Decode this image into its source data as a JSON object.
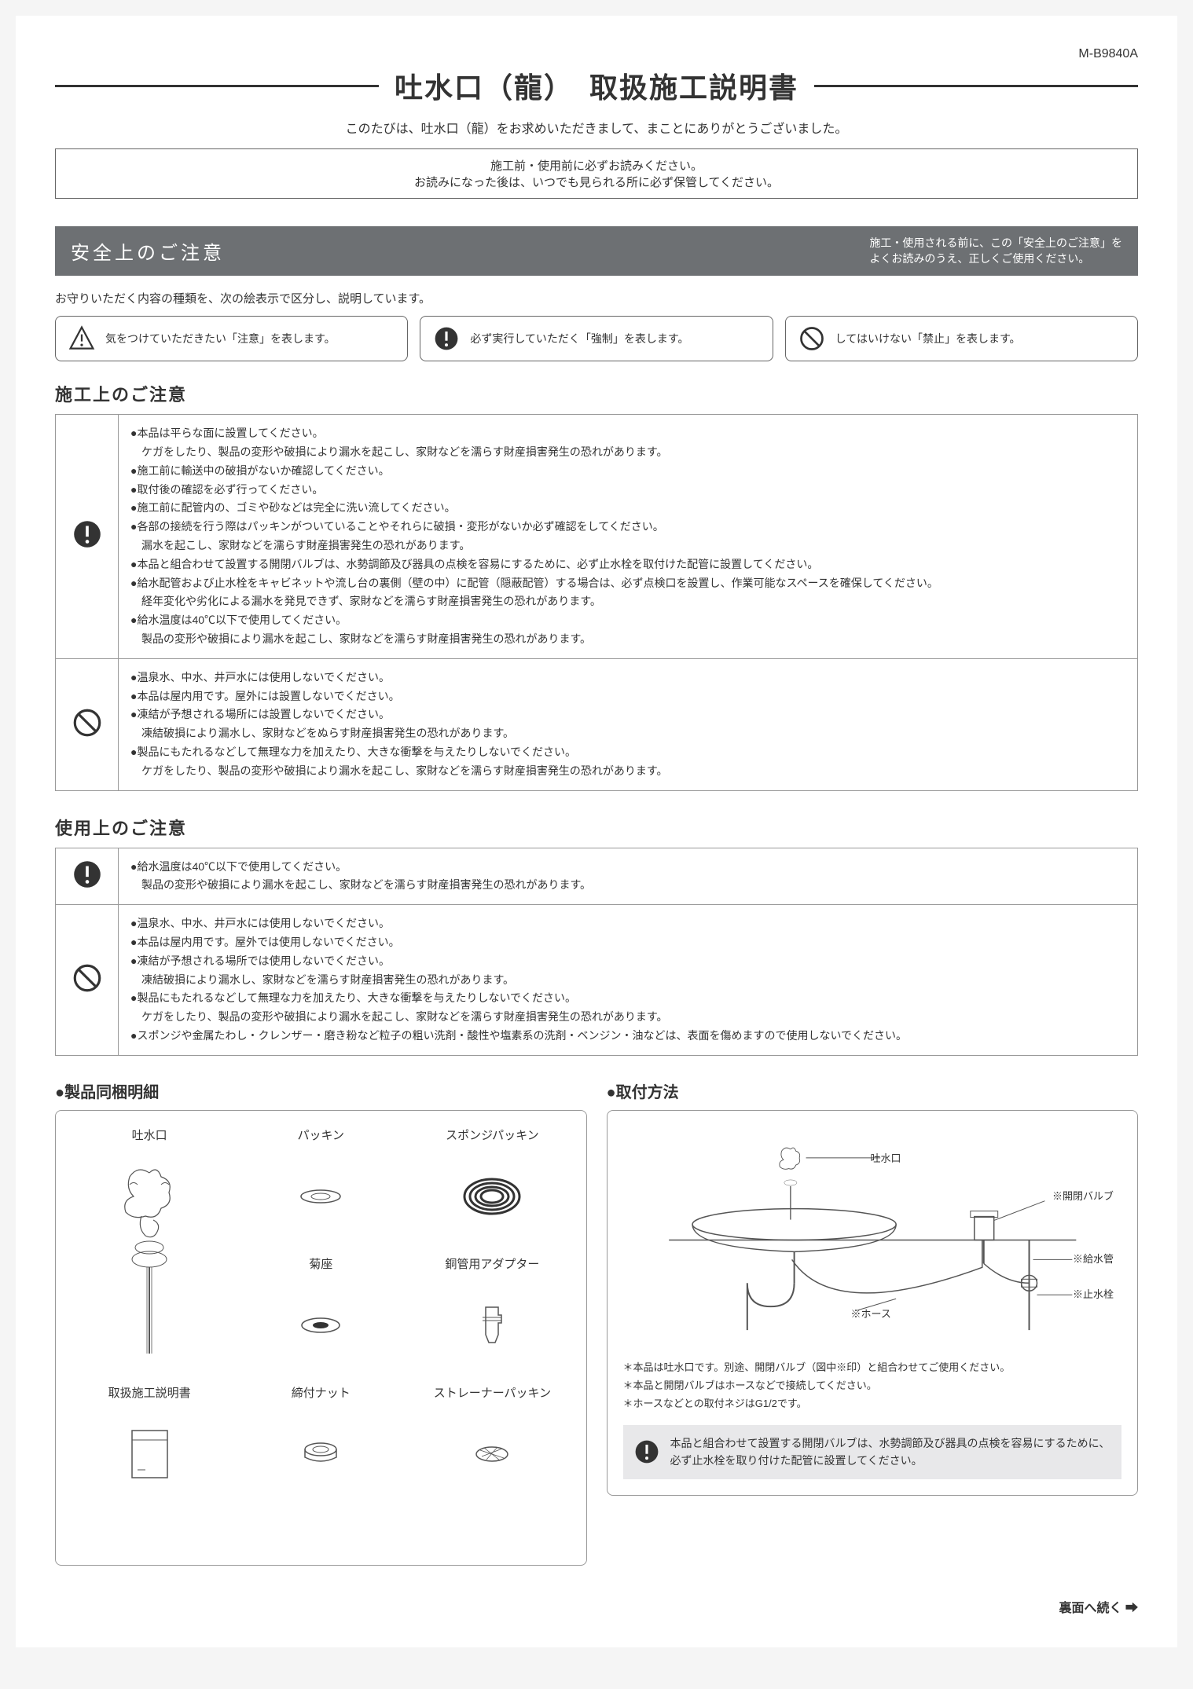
{
  "doc_code": "M-B9840A",
  "title": "吐水口（龍）　取扱施工説明書",
  "thanks": "このたびは、吐水口（龍）をお求めいただきまして、まことにありがとうございました。",
  "read_box": {
    "line1": "施工前・使用前に必ずお読みください。",
    "line2": "お読みになった後は、いつでも見られる所に必ず保管してください。"
  },
  "safety_bar": {
    "title": "安全上のご注意",
    "note": "施工・使用される前に、この「安全上のご注意」を\nよくお読みのうえ、正しくご使用ください。"
  },
  "explain": "お守りいただく内容の種類を、次の絵表示で区分し、説明しています。",
  "legend": {
    "caution": "気をつけていただきたい「注意」を表します。",
    "mandatory": "必ず実行していただく「強制」を表します。",
    "prohibit": "してはいけない「禁止」を表します。"
  },
  "construction_heading": "施工上のご注意",
  "construction_mandatory": [
    "●本品は平らな面に設置してください。",
    "　ケガをしたり、製品の変形や破損により漏水を起こし、家財などを濡らす財産損害発生の恐れがあります。",
    "●施工前に輸送中の破損がないか確認してください。",
    "●取付後の確認を必ず行ってください。",
    "●施工前に配管内の、ゴミや砂などは完全に洗い流してください。",
    "●各部の接続を行う際はパッキンがついていることやそれらに破損・変形がないか必ず確認をしてください。",
    "　漏水を起こし、家財などを濡らす財産損害発生の恐れがあります。",
    "●本品と組合わせて設置する開閉バルブは、水勢調節及び器具の点検を容易にするために、必ず止水栓を取付けた配管に設置してください。",
    "●給水配管および止水栓をキャビネットや流し台の裏側（壁の中）に配管（隠蔽配管）する場合は、必ず点検口を設置し、作業可能なスペースを確保してください。",
    "　経年変化や劣化による漏水を発見できず、家財などを濡らす財産損害発生の恐れがあります。",
    "●給水温度は40℃以下で使用してください。",
    "　製品の変形や破損により漏水を起こし、家財などを濡らす財産損害発生の恐れがあります。"
  ],
  "construction_prohibit": [
    "●温泉水、中水、井戸水には使用しないでください。",
    "●本品は屋内用です。屋外には設置しないでください。",
    "●凍結が予想される場所には設置しないでください。",
    "　凍結破損により漏水し、家財などをぬらす財産損害発生の恐れがあります。",
    "●製品にもたれるなどして無理な力を加えたり、大きな衝撃を与えたりしないでください。",
    "　ケガをしたり、製品の変形や破損により漏水を起こし、家財などを濡らす財産損害発生の恐れがあります。"
  ],
  "usage_heading": "使用上のご注意",
  "usage_mandatory": [
    "●給水温度は40℃以下で使用してください。",
    "　製品の変形や破損により漏水を起こし、家財などを濡らす財産損害発生の恐れがあります。"
  ],
  "usage_prohibit": [
    "●温泉水、中水、井戸水には使用しないでください。",
    "●本品は屋内用です。屋外では使用しないでください。",
    "●凍結が予想される場所では使用しないでください。",
    "　凍結破損により漏水し、家財などを濡らす財産損害発生の恐れがあります。",
    "●製品にもたれるなどして無理な力を加えたり、大きな衝撃を与えたりしないでください。",
    "　ケガをしたり、製品の変形や破損により漏水を起こし、家財などを濡らす財産損害発生の恐れがあります。",
    "●スポンジや金属たわし・クレンザー・磨き粉など粒子の粗い洗剤・酸性や塩素系の洗剤・ベンジン・油などは、表面を傷めますので使用しないでください。"
  ],
  "parts_heading": "●製品同梱明細",
  "install_heading": "●取付方法",
  "parts": {
    "spout": "吐水口",
    "packing": "パッキン",
    "sponge": "スポンジパッキン",
    "kikuza": "菊座",
    "adapter": "銅管用アダプター",
    "manual": "取扱施工説明書",
    "nut": "締付ナット",
    "strainer": "ストレーナーパッキン"
  },
  "install_labels": {
    "spout": "吐水口",
    "valve": "※開閉バルブ",
    "supply": "※給水管",
    "hose": "※ホース",
    "stop": "※止水栓"
  },
  "install_notes": [
    "＊本品は吐水口です。別途、開閉バルブ（図中※印）と組合わせてご使用ください。",
    "＊本品と開閉バルブはホースなどで接続してください。",
    "＊ホースなどとの取付ネジはG1/2です。"
  ],
  "install_warn": "本品と組合わせて設置する開閉バルブは、水勢調節及び器具の点検を容易にするために、必ず止水栓を取り付けた配管に設置してください。",
  "footer": "裏面へ続く ➡",
  "colors": {
    "bar_bg": "#6d7073",
    "border": "#999999",
    "text": "#333333",
    "warn_bg": "#e8e8ea"
  }
}
